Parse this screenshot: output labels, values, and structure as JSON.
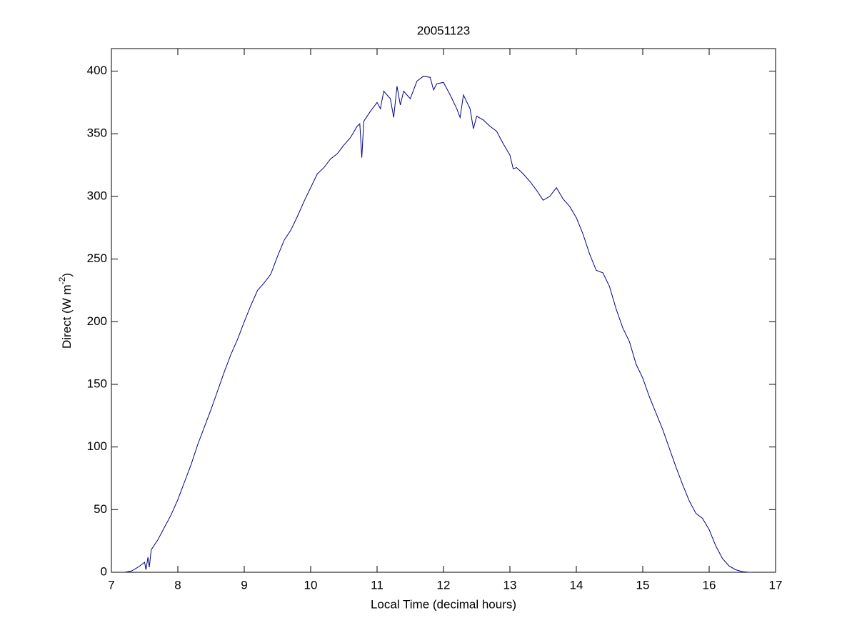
{
  "chart_data": {
    "type": "line",
    "title": "20051123",
    "xlabel": "Local Time (decimal hours)",
    "ylabel": {
      "base": "Direct (W m",
      "superscript": "-2",
      "close": ")"
    },
    "xlim": [
      7,
      17
    ],
    "xticks": [
      7,
      8,
      9,
      10,
      11,
      12,
      13,
      14,
      15,
      16,
      17
    ],
    "ylim": [
      0,
      418
    ],
    "yticks": [
      0,
      50,
      100,
      150,
      200,
      250,
      300,
      350,
      400
    ],
    "grid": false,
    "series": [
      {
        "color": "#00008b",
        "x": [
          7.2,
          7.3,
          7.4,
          7.5,
          7.52,
          7.55,
          7.57,
          7.6,
          7.7,
          7.8,
          7.9,
          8.0,
          8.1,
          8.2,
          8.3,
          8.4,
          8.5,
          8.6,
          8.7,
          8.8,
          8.9,
          9.0,
          9.1,
          9.2,
          9.3,
          9.4,
          9.5,
          9.6,
          9.7,
          9.8,
          9.9,
          10.0,
          10.1,
          10.2,
          10.3,
          10.4,
          10.5,
          10.6,
          10.7,
          10.74,
          10.77,
          10.8,
          10.9,
          11.0,
          11.05,
          11.1,
          11.2,
          11.25,
          11.3,
          11.35,
          11.4,
          11.5,
          11.6,
          11.7,
          11.8,
          11.85,
          11.9,
          12.0,
          12.1,
          12.2,
          12.25,
          12.3,
          12.4,
          12.45,
          12.5,
          12.6,
          12.7,
          12.8,
          12.9,
          13.0,
          13.05,
          13.1,
          13.2,
          13.3,
          13.4,
          13.5,
          13.6,
          13.7,
          13.8,
          13.9,
          14.0,
          14.1,
          14.2,
          14.3,
          14.4,
          14.5,
          14.6,
          14.7,
          14.8,
          14.9,
          15.0,
          15.1,
          15.2,
          15.3,
          15.4,
          15.5,
          15.6,
          15.7,
          15.8,
          15.9,
          16.0,
          16.1,
          16.2,
          16.3,
          16.4,
          16.5,
          16.6,
          16.65
        ],
        "values": [
          0,
          1,
          4,
          8,
          2,
          12,
          4,
          18,
          26,
          36,
          46,
          58,
          72,
          86,
          102,
          116,
          130,
          145,
          160,
          174,
          186,
          200,
          213,
          225,
          231,
          238,
          252,
          265,
          273,
          284,
          296,
          307,
          318,
          323,
          330,
          334,
          341,
          347,
          356,
          358,
          331,
          360,
          368,
          375,
          370,
          384,
          378,
          363,
          388,
          373,
          384,
          378,
          392,
          396,
          395,
          385,
          390,
          391,
          381,
          370,
          363,
          381,
          370,
          354,
          364,
          361,
          356,
          352,
          342,
          333,
          322,
          323,
          318,
          312,
          305,
          297,
          300,
          307,
          298,
          292,
          283,
          270,
          254,
          241,
          239,
          228,
          210,
          195,
          184,
          166,
          155,
          140,
          127,
          114,
          99,
          84,
          70,
          57,
          47,
          43,
          34,
          21,
          11,
          5,
          2,
          0.5,
          0,
          0
        ]
      }
    ]
  }
}
